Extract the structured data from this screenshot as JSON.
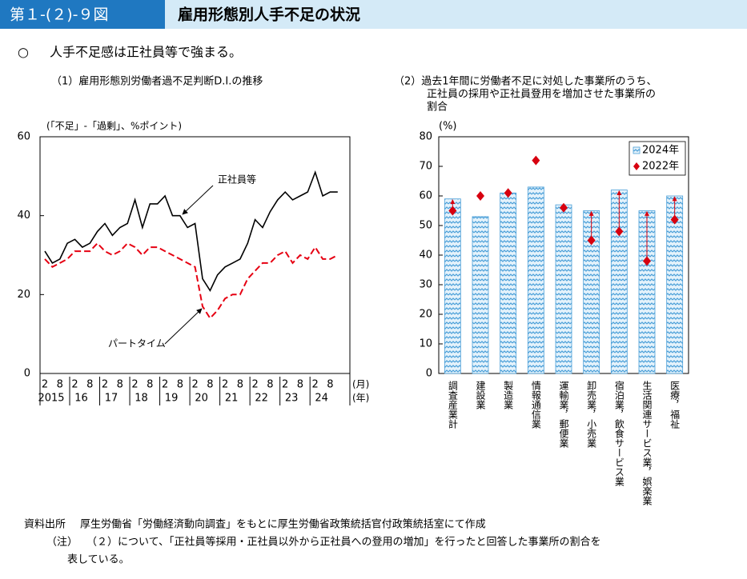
{
  "header": {
    "figure_no": "第１-(２)-９図",
    "title": "雇用形態別人手不足の状況"
  },
  "bullet": "○",
  "summary": "人手不足感は正社員等で強まる。",
  "chart_data": [
    {
      "type": "line",
      "title": "（1）雇用形態別労働者過不足判断D.I.の推移",
      "y_label": "(「不足」-「過剰」、%ポイント)",
      "categories": [
        "2",
        null,
        "8",
        null,
        "2",
        null,
        "8",
        null,
        "2",
        null,
        "8",
        null,
        "2",
        null,
        "8",
        null,
        "2",
        null,
        "8",
        null,
        "2",
        null,
        "8",
        null,
        "2",
        null,
        "8",
        null,
        "2",
        null,
        "8",
        null,
        "2",
        null,
        "8",
        null,
        "2",
        null,
        "8",
        null
      ],
      "years": [
        "2015",
        "16",
        "17",
        "18",
        "19",
        "20",
        "21",
        "22",
        "23",
        "24"
      ],
      "x_unit": "(月)",
      "year_unit": "(年)",
      "ylim": [
        0,
        60
      ],
      "yticks": [
        0,
        20,
        40,
        60
      ],
      "series": [
        {
          "name": "正社員等",
          "color": "#000000",
          "dashed": false,
          "values": [
            31,
            28,
            29,
            33,
            34,
            32,
            33,
            36,
            38,
            35,
            37,
            38,
            44,
            37,
            43,
            43,
            45,
            40,
            40,
            37,
            38,
            24,
            21,
            25,
            27,
            28,
            29,
            33,
            39,
            37,
            41,
            44,
            46,
            44,
            45,
            46,
            51,
            45,
            46,
            46
          ]
        },
        {
          "name": "パートタイム",
          "color": "#e60012",
          "dashed": true,
          "values": [
            29,
            27,
            28,
            29,
            31,
            31,
            31,
            33,
            31,
            30,
            31,
            33,
            32,
            30,
            32,
            32,
            31,
            30,
            29,
            28,
            27,
            17,
            14,
            16,
            19,
            20,
            20,
            24,
            26,
            28,
            28,
            30,
            31,
            28,
            30,
            29,
            32,
            29,
            29,
            30
          ]
        }
      ]
    },
    {
      "type": "bar",
      "title": [
        "（2）過去1年間に労働者不足に対処した事業所のうち、",
        "正社員の採用や正社員登用を増加させた事業所の",
        "割合"
      ],
      "y_label": "(%)",
      "categories": [
        "調査産業計",
        "建設業",
        "製造業",
        "情報通信業",
        "運輸業，郵便業",
        "卸売業，小売業",
        "宿泊業，飲食サービス業",
        "生活関連サービス業，娯楽業",
        "医療，福祉"
      ],
      "ylim": [
        0,
        80
      ],
      "yticks": [
        0,
        10,
        20,
        30,
        40,
        50,
        60,
        70,
        80
      ],
      "legend": "upper right",
      "series": [
        {
          "name": "2024年",
          "color": "#4a9fd8",
          "mark": "bar",
          "values": [
            59,
            53,
            61,
            63,
            57,
            55,
            62,
            55,
            60
          ]
        },
        {
          "name": "2022年",
          "color": "#d7000f",
          "mark": "diamond",
          "values": [
            55,
            60,
            61,
            72,
            56,
            45,
            48,
            38,
            52
          ]
        }
      ]
    }
  ],
  "source_label": "資料出所",
  "source": "厚生労働省「労働経済動向調査」をもとに厚生労働省政策統括官付政策統括室にて作成",
  "note_label": "（注）",
  "note": [
    "（２）について、「正社員等採用・正社員以外から正社員への登用の増加」を行ったと回答した事業所の割合を",
    "表している。"
  ]
}
